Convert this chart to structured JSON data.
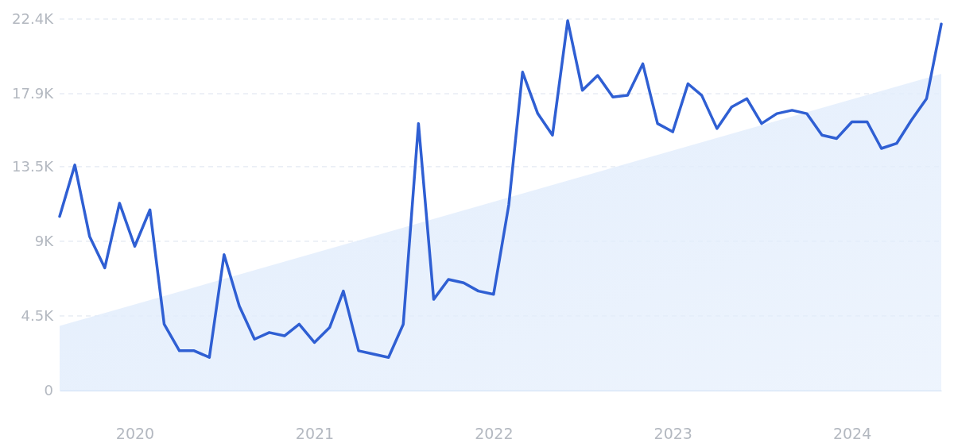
{
  "chart_data": {
    "type": "line",
    "x": [
      "2019-08",
      "2019-09",
      "2019-10",
      "2019-11",
      "2019-12",
      "2020-01",
      "2020-02",
      "2020-03",
      "2020-04",
      "2020-05",
      "2020-06",
      "2020-07",
      "2020-08",
      "2020-09",
      "2020-10",
      "2020-11",
      "2020-12",
      "2021-01",
      "2021-02",
      "2021-03",
      "2021-04",
      "2021-05",
      "2021-06",
      "2021-07",
      "2021-08",
      "2021-09",
      "2021-10",
      "2021-11",
      "2021-12",
      "2022-01",
      "2022-02",
      "2022-03",
      "2022-04",
      "2022-05",
      "2022-06",
      "2022-07",
      "2022-08",
      "2022-09",
      "2022-10",
      "2022-11",
      "2022-12",
      "2023-01",
      "2023-02",
      "2023-03",
      "2023-04",
      "2023-05",
      "2023-06",
      "2023-07",
      "2023-08",
      "2023-09",
      "2023-10",
      "2023-11",
      "2023-12",
      "2024-01",
      "2024-02",
      "2024-03",
      "2024-04",
      "2024-05",
      "2024-06",
      "2024-07"
    ],
    "series": [
      {
        "type": "area",
        "color": "#e2edfc",
        "x": [
          "2019-08",
          "2024-07"
        ],
        "values": [
          3900,
          19100
        ]
      },
      {
        "color": "#2f5fd3",
        "values": [
          10500,
          13600,
          9300,
          7400,
          11300,
          8700,
          10900,
          4000,
          2400,
          2400,
          2000,
          8200,
          5100,
          3100,
          3500,
          3300,
          4000,
          2900,
          3800,
          6000,
          2400,
          2200,
          2000,
          4000,
          16100,
          5500,
          6700,
          6500,
          6000,
          5800,
          11200,
          19200,
          16700,
          15400,
          22300,
          18100,
          19000,
          17700,
          17800,
          19700,
          16100,
          15600,
          18500,
          17800,
          15800,
          17100,
          17600,
          16100,
          16700,
          16900,
          16700,
          15400,
          15200,
          16200,
          16200,
          14600,
          14900,
          16300,
          17600,
          22100
        ]
      }
    ],
    "xlim": [
      "2019-08",
      "2024-07"
    ],
    "xticks": [
      "2020",
      "2021",
      "2022",
      "2023",
      "2024"
    ],
    "ylim": [
      0,
      22400
    ],
    "yticks": [
      0,
      {
        "value": 4500,
        "label": "4.5K"
      },
      {
        "value": 9000,
        "label": "9K"
      },
      {
        "value": 13500,
        "label": "13.5K"
      },
      {
        "value": 17900,
        "label": "17.9K"
      },
      {
        "value": 22400,
        "label": "22.4K"
      }
    ],
    "grid": "y",
    "marker": "none",
    "line_style": "solid"
  }
}
